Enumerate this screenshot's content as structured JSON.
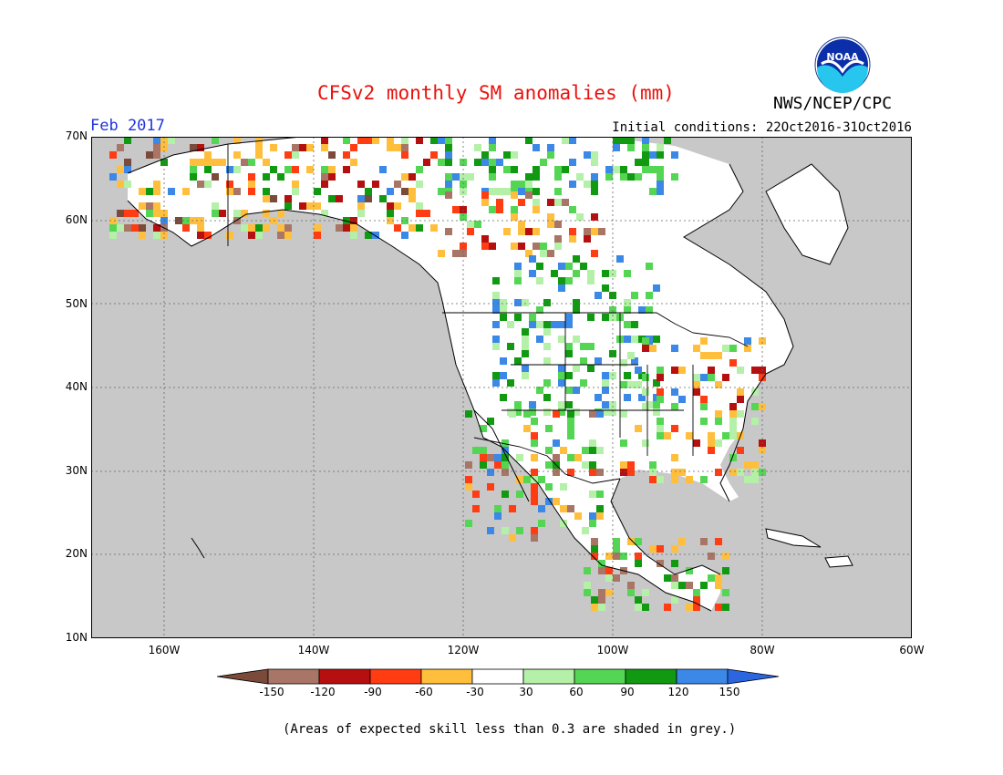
{
  "title": "CFSv2 monthly SM anomalies (mm)",
  "agency": "NWS/NCEP/CPC",
  "logo_text": "NOAA",
  "period": "Feb 2017",
  "initial_conditions": "Initial conditions: 22Oct2016-31Oct2016",
  "footnote": "(Areas of expected skill less than 0.3 are shaded in grey.)",
  "lat_labels": [
    "70N",
    "60N",
    "50N",
    "40N",
    "30N",
    "20N",
    "10N"
  ],
  "lon_labels": [
    "160W",
    "140W",
    "120W",
    "100W",
    "80W",
    "60W"
  ],
  "colorbar": {
    "labels": [
      "-150",
      "-120",
      "-90",
      "-60",
      "-30",
      "30",
      "60",
      "90",
      "120",
      "150"
    ],
    "colors": [
      "#7a4a3a",
      "#a87566",
      "#b50f0f",
      "#ff3c12",
      "#ffbf3c",
      "#ffffff",
      "#b4f0a8",
      "#54d654",
      "#119911",
      "#3b88e6",
      "#2b66e0"
    ]
  },
  "colors": {
    "background_grey": "#c8c8c8",
    "title_red": "#e8120c",
    "period_blue": "#2233dd"
  }
}
